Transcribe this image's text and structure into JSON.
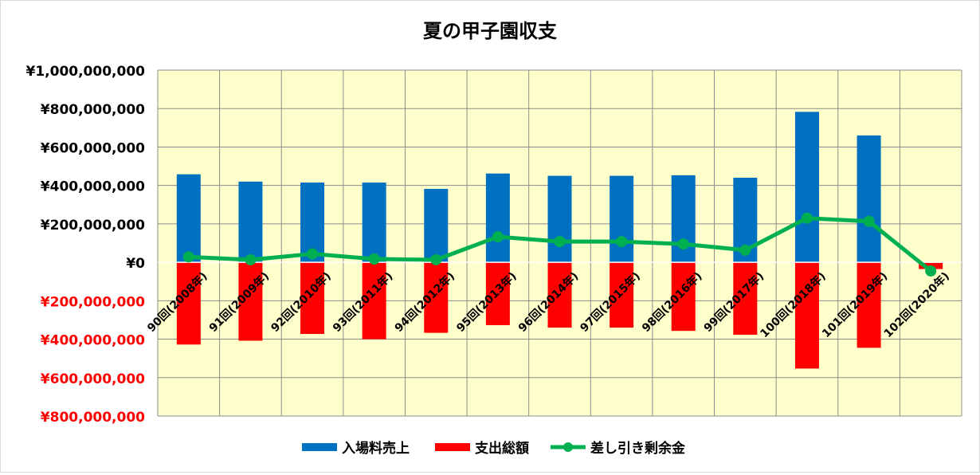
{
  "chart_data": {
    "type": "bar",
    "title": "夏の甲子園収支",
    "xlabel": "",
    "ylabel": "",
    "categories": [
      "90回(2008年)",
      "91回(2009年)",
      "92回(2010年)",
      "93回(2011年)",
      "94回(2012年)",
      "95回(2013年)",
      "96回(2014年)",
      "97回(2015年)",
      "98回(2016年)",
      "99回(2017年)",
      "100回(2018年)",
      "101回(2019年)",
      "102回(2020年)"
    ],
    "series": [
      {
        "name": "入場料売上",
        "type": "bar",
        "color": "#0070C0",
        "values": [
          458000000,
          420000000,
          415000000,
          415000000,
          382000000,
          462000000,
          450000000,
          450000000,
          453000000,
          440000000,
          783000000,
          660000000,
          0
        ]
      },
      {
        "name": "支出総額",
        "type": "bar",
        "color": "#FF0000",
        "values": [
          -428000000,
          -408000000,
          -373000000,
          -400000000,
          -367000000,
          -327000000,
          -340000000,
          -340000000,
          -357000000,
          -377000000,
          -553000000,
          -445000000,
          -35000000
        ]
      },
      {
        "name": "差し引き剰余金",
        "type": "line",
        "color": "#00B050",
        "values": [
          28000000,
          13000000,
          44000000,
          17000000,
          13000000,
          133000000,
          108000000,
          108000000,
          95000000,
          63000000,
          230000000,
          213000000,
          -45000000
        ]
      }
    ],
    "ylim": [
      -800000000,
      1000000000
    ],
    "y_ticks": [
      {
        "value": 1000000000,
        "label": "¥1,000,000,000",
        "color": "#000000"
      },
      {
        "value": 800000000,
        "label": "¥800,000,000",
        "color": "#000000"
      },
      {
        "value": 600000000,
        "label": "¥600,000,000",
        "color": "#000000"
      },
      {
        "value": 400000000,
        "label": "¥400,000,000",
        "color": "#000000"
      },
      {
        "value": 200000000,
        "label": "¥200,000,000",
        "color": "#000000"
      },
      {
        "value": 0,
        "label": "¥0",
        "color": "#000000"
      },
      {
        "value": -200000000,
        "label": "¥200,000,000",
        "color": "#FF0000"
      },
      {
        "value": -400000000,
        "label": "¥400,000,000",
        "color": "#FF0000"
      },
      {
        "value": -600000000,
        "label": "¥600,000,000",
        "color": "#FF0000"
      },
      {
        "value": -800000000,
        "label": "¥800,000,000",
        "color": "#FF0000"
      }
    ],
    "grid": true,
    "plot_background": "#FFFFCC",
    "legend_position": "bottom"
  }
}
